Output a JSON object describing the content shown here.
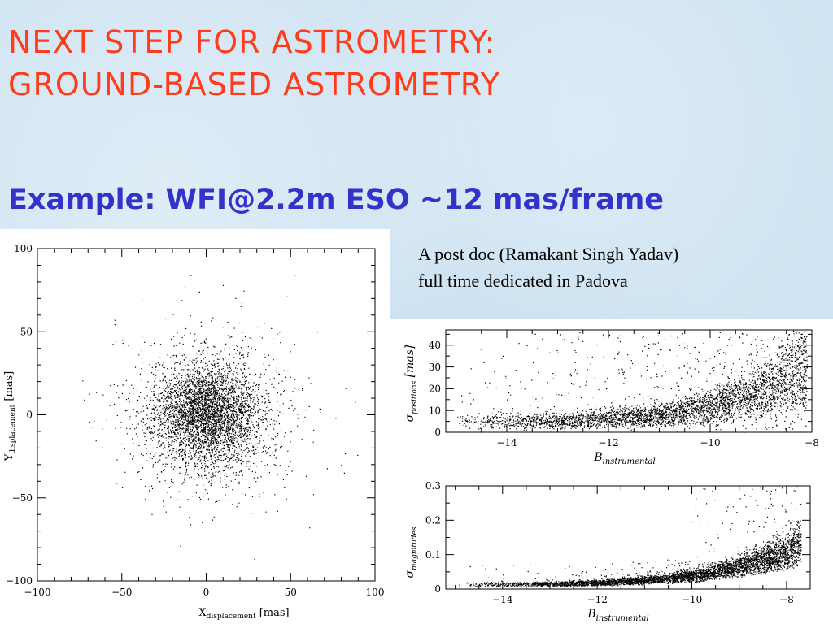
{
  "slide": {
    "title_line1": "NEXT STEP FOR ASTROMETRY:",
    "title_line2": "GROUND-BASED ASTROMETRY",
    "example": "Example: WFI@2.2m ESO ~12 mas/frame",
    "note_line1": "A post doc (Ramakant Singh Yadav)",
    "note_line2": "full time dedicated in Padova"
  },
  "chart_data": [
    {
      "type": "scatter",
      "xlabel_main": "X",
      "xlabel_sub": "displacement",
      "xlabel_unit": "[mas]",
      "ylabel_main": "Y",
      "ylabel_sub": "displacement",
      "ylabel_unit": "[mas]",
      "xlim": [
        -100,
        100
      ],
      "ylim": [
        -100,
        100
      ],
      "xticks": [
        -100,
        -50,
        0,
        50,
        100
      ],
      "yticks": [
        -100,
        -50,
        0,
        50,
        100
      ],
      "xtick_labels": [
        "−100",
        "−50",
        "0",
        "50",
        "100"
      ],
      "ytick_labels": [
        "−100",
        "−50",
        "0",
        "50",
        "100"
      ],
      "distribution": {
        "center": [
          0,
          0
        ],
        "sigma": 15,
        "n_points": 4500
      }
    },
    {
      "type": "scatter",
      "xlabel_main": "B",
      "xlabel_sub": "instrumental",
      "ylabel_main": "σ",
      "ylabel_sub": "positions",
      "ylabel_unit": "[mas]",
      "xlim": [
        -15.2,
        -8
      ],
      "ylim": [
        0,
        47
      ],
      "xticks": [
        -14,
        -12,
        -10,
        -8
      ],
      "yticks": [
        0,
        10,
        20,
        30,
        40
      ],
      "xtick_labels": [
        "−14",
        "−12",
        "−10",
        "−8"
      ],
      "ytick_labels": [
        "0",
        "10",
        "20",
        "30",
        "40"
      ],
      "trend": [
        [
          -15,
          4
        ],
        [
          -14,
          4
        ],
        [
          -13,
          4
        ],
        [
          -12,
          5
        ],
        [
          -11,
          6
        ],
        [
          -10,
          9
        ],
        [
          -9,
          14
        ],
        [
          -8.3,
          22
        ]
      ]
    },
    {
      "type": "scatter",
      "xlabel_main": "B",
      "xlabel_sub": "instrumental",
      "ylabel_main": "σ",
      "ylabel_sub": "magnitudes",
      "xlim": [
        -15.2,
        -7.5
      ],
      "ylim": [
        0,
        0.3
      ],
      "xticks": [
        -14,
        -12,
        -10,
        -8
      ],
      "yticks": [
        0,
        0.1,
        0.2,
        0.3
      ],
      "xtick_labels": [
        "−14",
        "−12",
        "−10",
        "−8"
      ],
      "ytick_labels": [
        "0",
        "0.1",
        "0.2",
        "0.3"
      ],
      "trend": [
        [
          -15,
          0.012
        ],
        [
          -14,
          0.012
        ],
        [
          -13,
          0.013
        ],
        [
          -12,
          0.016
        ],
        [
          -11,
          0.022
        ],
        [
          -10,
          0.032
        ],
        [
          -9,
          0.055
        ],
        [
          -8,
          0.09
        ],
        [
          -7.6,
          0.12
        ]
      ]
    }
  ]
}
